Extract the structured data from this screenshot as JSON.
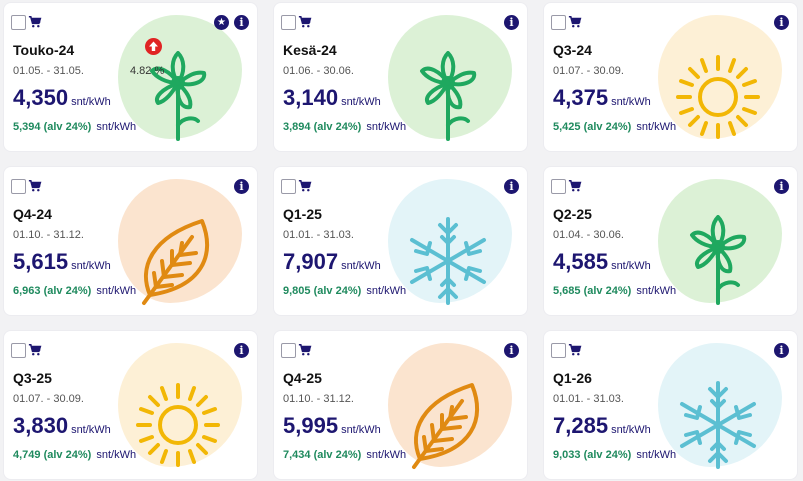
{
  "cards": [
    {
      "title": "Touko-24",
      "dates": "01.05. - 31.05.",
      "price": "4,350",
      "unit": "snt/kWh",
      "vat_price": "5,394 (alv 24%)",
      "vat_unit": "snt/kWh",
      "icon": "flower-icon",
      "blob_color": "#dcf1d6",
      "change": "4.82 %",
      "favorite": true
    },
    {
      "title": "Kesä-24",
      "dates": "01.06. - 30.06.",
      "price": "3,140",
      "unit": "snt/kWh",
      "vat_price": "3,894 (alv 24%)",
      "vat_unit": "snt/kWh",
      "icon": "flower-icon",
      "blob_color": "#dcf1d6"
    },
    {
      "title": "Q3-24",
      "dates": "01.07. - 30.09.",
      "price": "4,375",
      "unit": "snt/kWh",
      "vat_price": "5,425 (alv 24%)",
      "vat_unit": "snt/kWh",
      "icon": "sun-icon",
      "blob_color": "#fdf0d6"
    },
    {
      "title": "Q4-24",
      "dates": "01.10. - 31.12.",
      "price": "5,615",
      "unit": "snt/kWh",
      "vat_price": "6,963 (alv 24%)",
      "vat_unit": "snt/kWh",
      "icon": "leaf-icon",
      "blob_color": "#fbe4cf"
    },
    {
      "title": "Q1-25",
      "dates": "01.01. - 31.03.",
      "price": "7,907",
      "unit": "snt/kWh",
      "vat_price": "9,805 (alv 24%)",
      "vat_unit": "snt/kWh",
      "icon": "snowflake-icon",
      "blob_color": "#e3f4f8"
    },
    {
      "title": "Q2-25",
      "dates": "01.04. - 30.06.",
      "price": "4,585",
      "unit": "snt/kWh",
      "vat_price": "5,685 (alv 24%)",
      "vat_unit": "snt/kWh",
      "icon": "flower-icon",
      "blob_color": "#dcf1d6"
    },
    {
      "title": "Q3-25",
      "dates": "01.07. - 30.09.",
      "price": "3,830",
      "unit": "snt/kWh",
      "vat_price": "4,749 (alv 24%)",
      "vat_unit": "snt/kWh",
      "icon": "sun-icon",
      "blob_color": "#fdf0d6"
    },
    {
      "title": "Q4-25",
      "dates": "01.10. - 31.12.",
      "price": "5,995",
      "unit": "snt/kWh",
      "vat_price": "7,434 (alv 24%)",
      "vat_unit": "snt/kWh",
      "icon": "leaf-icon",
      "blob_color": "#fbe4cf"
    },
    {
      "title": "Q1-26",
      "dates": "01.01. - 31.03.",
      "price": "7,285",
      "unit": "snt/kWh",
      "vat_price": "9,033 (alv 24%)",
      "vat_unit": "snt/kWh",
      "icon": "snowflake-icon",
      "blob_color": "#e3f4f8"
    }
  ],
  "colors": {
    "flower": "#1fa85f",
    "sun": "#f2b705",
    "leaf": "#e08a12",
    "snowflake": "#5bbfd2",
    "brand": "#1d1670",
    "vat_green": "#1f8a5e",
    "trend_up": "#e02424"
  }
}
